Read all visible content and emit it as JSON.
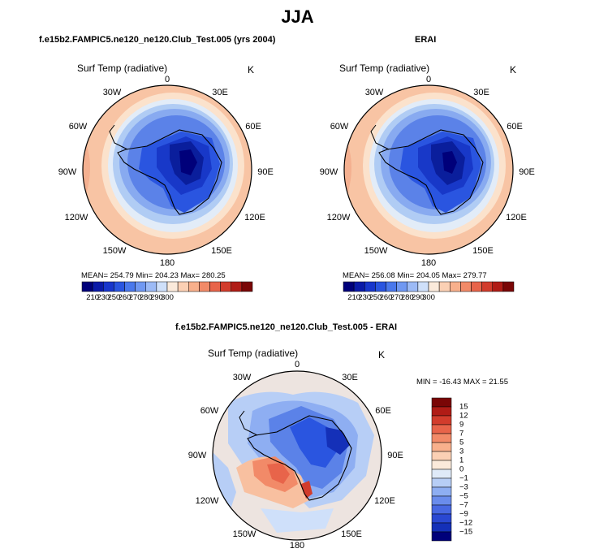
{
  "figure_title": "JJA",
  "panel_left": {
    "title": "f.e15b2.FAMPIC5.ne120_ne120.Club_Test.005 (yrs 2004)",
    "variable": "Surf Temp (radiative)",
    "units": "K",
    "stats": "MEAN= 254.79   Min= 204.23   Max= 280.25"
  },
  "panel_right": {
    "title": "ERAI",
    "variable": "Surf Temp (radiative)",
    "units": "K",
    "stats": "MEAN= 256.08   Min= 204.05   Max= 279.77"
  },
  "panel_diff": {
    "title": "f.e15b2.FAMPIC5.ne120_ne120.Club_Test.005 - ERAI",
    "variable": "Surf Temp (radiative)",
    "units": "K",
    "stats": "MIN = -16.43  MAX =  21.55"
  },
  "longitude_labels": [
    "0",
    "30E",
    "60E",
    "90E",
    "120E",
    "150E",
    "180",
    "150W",
    "120W",
    "90W",
    "60W",
    "30W"
  ],
  "colorbar_abs": {
    "labels": [
      "210",
      "230",
      "250",
      "260",
      "270",
      "280",
      "290",
      "300"
    ],
    "colors": [
      "#00007a",
      "#0a1aa8",
      "#1836cc",
      "#2a55e0",
      "#4a78ec",
      "#7098f2",
      "#9cbaf6",
      "#cfe0fa",
      "#fbeadb",
      "#fbd0b4",
      "#f8b08c",
      "#f28a68",
      "#e8644a",
      "#d23c2c",
      "#b01c16",
      "#7a0606"
    ]
  },
  "colorbar_diff": {
    "labels": [
      "15",
      "12",
      "9",
      "7",
      "5",
      "3",
      "1",
      "0",
      "−1",
      "−3",
      "−5",
      "−7",
      "−9",
      "−12",
      "−15"
    ],
    "colors": [
      "#7a0606",
      "#b01c16",
      "#d23c2c",
      "#e8644a",
      "#f28a68",
      "#f8b08c",
      "#fbd0b4",
      "#fbeadb",
      "#dfeaf8",
      "#b7cef6",
      "#8eaef2",
      "#6a8cec",
      "#4868e2",
      "#2a48d2",
      "#1430b8",
      "#00007a"
    ]
  }
}
